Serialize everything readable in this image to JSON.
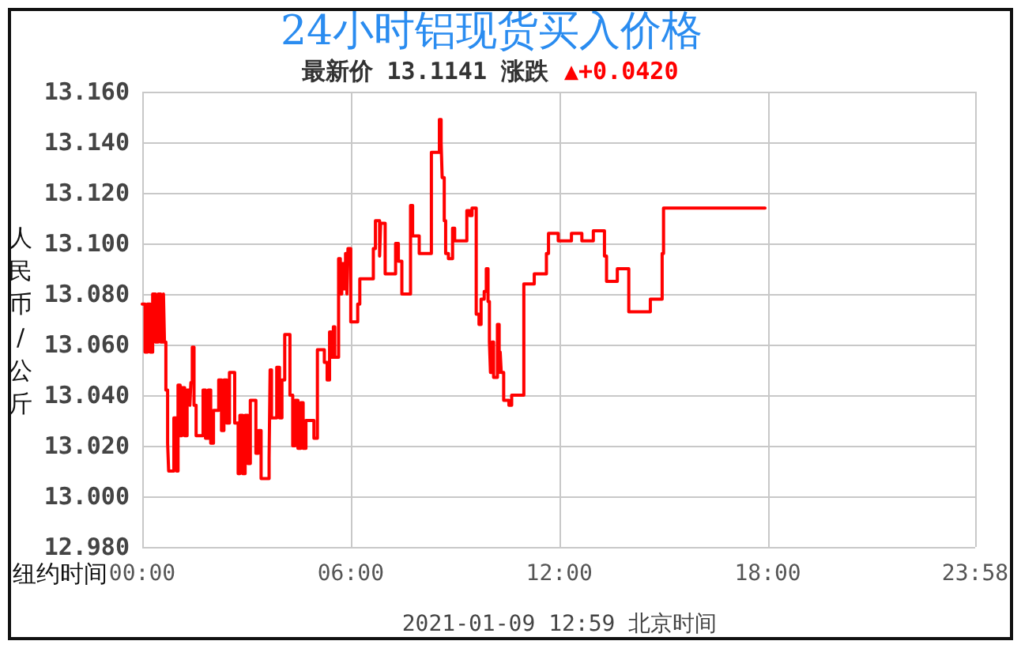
{
  "chart_data": {
    "type": "step",
    "title": "24小时铝现货买入价格",
    "subtitle": "最新价 13.1141 涨跌",
    "annotations": [
      "▲+0.0420",
      "2021-01-09 12:59 北京时间"
    ],
    "xlabel": "纽约时间",
    "ylabel": "人民币/公斤",
    "x": [
      0,
      0.08,
      0.15,
      0.23,
      0.3,
      0.38,
      0.46,
      0.53,
      0.61,
      0.64,
      0.68,
      0.73,
      0.76,
      0.91,
      0.99,
      1.03,
      1.09,
      1.14,
      1.22,
      1.29,
      1.37,
      1.4,
      1.44,
      1.49,
      1.55,
      1.75,
      1.82,
      1.9,
      1.97,
      2.05,
      2.2,
      2.28,
      2.35,
      2.43,
      2.51,
      2.66,
      2.76,
      2.81,
      2.89,
      2.96,
      3.04,
      3.11,
      3.27,
      3.34,
      3.42,
      3.65,
      3.68,
      3.72,
      3.87,
      3.95,
      4.02,
      4.1,
      4.25,
      4.33,
      4.4,
      4.48,
      4.56,
      4.63,
      4.71,
      4.94,
      5.04,
      5.24,
      5.32,
      5.39,
      5.44,
      5.5,
      5.54,
      5.65,
      5.7,
      5.74,
      5.8,
      5.85,
      5.89,
      5.92,
      6,
      6.2,
      6.26,
      6.65,
      6.71,
      6.83,
      6.86,
      6.99,
      7.29,
      7.37,
      7.47,
      7.72,
      7.78,
      7.97,
      8.32,
      8.55,
      8.6,
      8.63,
      8.69,
      8.73,
      8.81,
      8.93,
      8.99,
      9.34,
      9.42,
      9.49,
      9.61,
      9.69,
      9.75,
      9.84,
      9.9,
      9.95,
      9.99,
      10.02,
      10.07,
      10.11,
      10.22,
      10.27,
      10.3,
      10.33,
      10.4,
      10.55,
      10.63,
      10.98,
      11.28,
      11.63,
      11.69,
      11.97,
      12.35,
      12.65,
      12.98,
      13.3,
      13.36,
      13.67,
      14,
      14.62,
      14.96,
      15,
      17.92
    ],
    "values": [
      13.076,
      13.057,
      13.076,
      13.057,
      13.08,
      13.061,
      13.08,
      13.061,
      13.08,
      13.061,
      13.042,
      13.021,
      13.01,
      13.031,
      13.01,
      13.044,
      13.024,
      13.043,
      13.024,
      13.042,
      13.036,
      13.045,
      13.059,
      13.036,
      13.024,
      13.042,
      13.023,
      13.042,
      13.021,
      13.034,
      13.046,
      13.026,
      13.046,
      13.029,
      13.049,
      13.029,
      13.009,
      13.032,
      13.009,
      13.032,
      13.013,
      13.038,
      13.017,
      13.026,
      13.007,
      13.015,
      13.05,
      13.031,
      13.051,
      13.031,
      13.046,
      13.064,
      13.04,
      13.02,
      13.038,
      13.019,
      13.037,
      13.019,
      13.03,
      13.023,
      13.058,
      13.053,
      13.046,
      13.065,
      13.055,
      13.067,
      13.055,
      13.094,
      13.08,
      13.092,
      13.082,
      13.096,
      13.08,
      13.098,
      13.069,
      13.076,
      13.086,
      13.098,
      13.109,
      13.095,
      13.108,
      13.088,
      13.1,
      13.093,
      13.08,
      13.115,
      13.103,
      13.096,
      13.136,
      13.149,
      13.14,
      13.126,
      13.109,
      13.096,
      13.094,
      13.106,
      13.101,
      13.113,
      13.111,
      13.114,
      13.072,
      13.068,
      13.078,
      13.081,
      13.09,
      13.077,
      13.061,
      13.049,
      13.061,
      13.047,
      13.068,
      13.049,
      13.057,
      13.049,
      13.038,
      13.036,
      13.04,
      13.084,
      13.088,
      13.096,
      13.104,
      13.101,
      13.104,
      13.101,
      13.105,
      13.095,
      13.085,
      13.09,
      13.073,
      13.078,
      13.096,
      13.114,
      13.114
    ],
    "color": "#ff0000",
    "marker": "none",
    "grid": true,
    "xlim": [
      0,
      23.967
    ],
    "xticks": [
      {
        "value": 0,
        "label": "00:00"
      },
      {
        "value": 6,
        "label": "06:00"
      },
      {
        "value": 12,
        "label": "12:00"
      },
      {
        "value": 18,
        "label": "18:00"
      },
      {
        "value": 23.967,
        "label": "23:58"
      }
    ],
    "ylim": [
      12.98,
      13.16
    ],
    "yticks": [
      {
        "value": 12.98,
        "label": "12.980"
      },
      {
        "value": 13,
        "label": "13.000"
      },
      {
        "value": 13.02,
        "label": "13.020"
      },
      {
        "value": 13.04,
        "label": "13.040"
      },
      {
        "value": 13.06,
        "label": "13.060"
      },
      {
        "value": 13.08,
        "label": "13.080"
      },
      {
        "value": 13.1,
        "label": "13.100"
      },
      {
        "value": 13.12,
        "label": "13.120"
      },
      {
        "value": 13.14,
        "label": "13.140"
      },
      {
        "value": 13.16,
        "label": "13.160"
      }
    ]
  }
}
